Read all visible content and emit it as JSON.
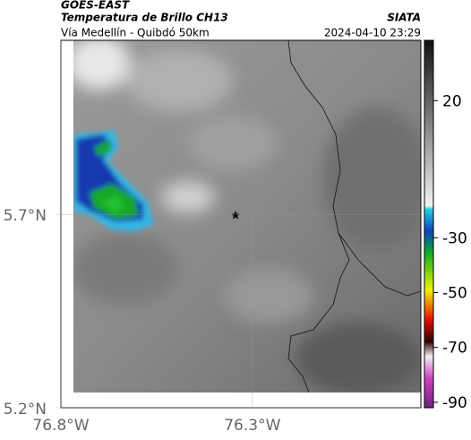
{
  "header": {
    "product": "GOES-EAST",
    "title": "Temperatura de Brillo CH13",
    "brand": "SIATA",
    "subtitle": "Vía Medellín - Quibdó 50km",
    "timestamp": "2024-04-10 23:29"
  },
  "map": {
    "xlim": [
      -76.8,
      -75.86
    ],
    "ylim": [
      5.2,
      6.15
    ],
    "xticks": [
      {
        "value": -76.8,
        "label": "76.8°W"
      },
      {
        "value": -76.3,
        "label": "76.3°W"
      }
    ],
    "yticks": [
      {
        "value": 5.2,
        "label": "5.2°N"
      },
      {
        "value": 5.7,
        "label": "5.7°N"
      }
    ]
  },
  "colorbar": {
    "lim": [
      -92,
      42
    ],
    "ticks": [
      20,
      -30,
      -50,
      -70,
      -90
    ]
  }
}
